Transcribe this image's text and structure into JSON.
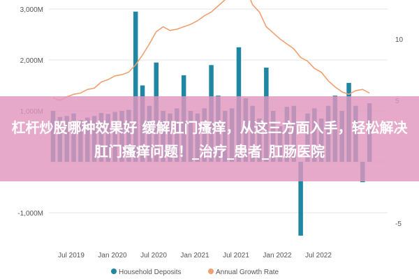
{
  "colors": {
    "bars": "#1f86a3",
    "line": "#f0a070",
    "grid": "#e6e6e6",
    "banner": "#e296be"
  },
  "overlay": {
    "text": "杠杆炒股哪种效果好 缓解肛门瘙痒，从这三方面入手，轻松解决肛门瘙痒问题！_治疗_患者_肛肠医院"
  },
  "chart_data": {
    "type": "bar+line",
    "left_axis": {
      "ticks": [
        -1000,
        0,
        1000,
        2000,
        3000
      ],
      "tick_labels": [
        "-1,000M",
        "",
        "1,000M",
        "2,000M",
        "3,000M"
      ],
      "range": [
        -1500,
        3200
      ]
    },
    "right_axis": {
      "ticks": [
        -5,
        0,
        5,
        10
      ],
      "tick_labels": [
        "-5",
        "",
        "5",
        "10"
      ],
      "range": [
        -8.6,
        14.5
      ]
    },
    "x_ticks": [
      "Jul 2019",
      "Jan 2020",
      "Jul 2020",
      "Jan 2021",
      "Jul 2021",
      "Jan 2022",
      "Jul 2022"
    ],
    "series": [
      {
        "name": "Household Deposits",
        "type": "bar",
        "values": [
          1000,
          880,
          900,
          950,
          820,
          870,
          900,
          960,
          940,
          980,
          1000,
          1020,
          2950,
          1500,
          1100,
          1950,
          1000,
          950,
          1050,
          1700,
          1000,
          950,
          1050,
          1900,
          1300,
          1000,
          1050,
          2250,
          1250,
          1100,
          850,
          1850,
          1000,
          700,
          1080,
          1100,
          -1450,
          950,
          1050,
          850,
          1100,
          1300,
          1000,
          1550,
          1100,
          -400,
          1150
        ]
      },
      {
        "name": "Annual Growth Rate",
        "type": "line",
        "values": [
          5.2,
          5.0,
          5.3,
          5.5,
          5.6,
          5.9,
          6.0,
          6.5,
          6.7,
          7.0,
          7.1,
          7.3,
          7.9,
          8.7,
          9.6,
          10.6,
          11.0,
          10.7,
          10.8,
          11.0,
          11.2,
          11.5,
          11.9,
          12.2,
          12.7,
          13.2,
          14.0,
          14.5,
          14.2,
          12.8,
          12.2,
          11.0,
          10.5,
          10.0,
          9.6,
          9.2,
          8.5,
          8.2,
          7.6,
          7.3,
          6.6,
          6.1,
          5.7,
          5.5,
          5.8,
          5.9,
          5.6
        ]
      }
    ]
  }
}
